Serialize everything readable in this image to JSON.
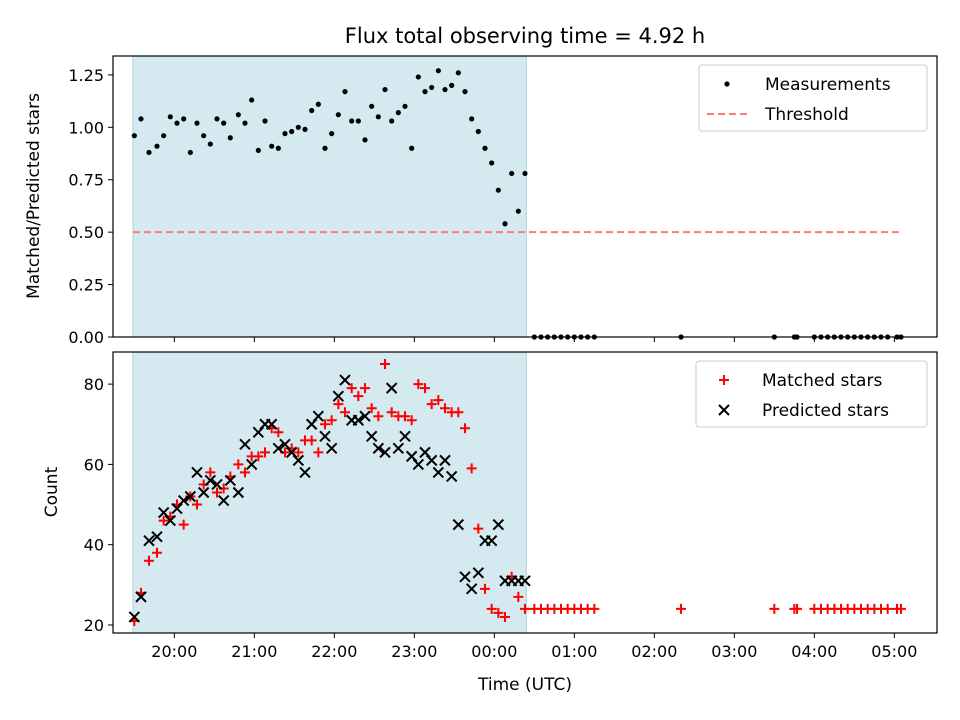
{
  "chart_data": [
    {
      "type": "scatter",
      "title": "Flux total observing time = 4.92 h",
      "xlabel": "",
      "ylabel": "Matched/Predicted stars",
      "xlim": [
        "19:14",
        "05:32"
      ],
      "ylim": [
        0,
        1.34
      ],
      "yticks": [
        "0.00",
        "0.25",
        "0.50",
        "0.75",
        "1.00",
        "1.25"
      ],
      "legend": {
        "position": "upper right",
        "entries": [
          "Measurements",
          "Threshold"
        ]
      },
      "shaded_region": {
        "x": [
          "19:29",
          "00:24"
        ],
        "color": "#d4eaf0"
      },
      "threshold": {
        "value": 0.5,
        "x": [
          "19:29",
          "05:05"
        ],
        "color": "#ff7a7a"
      },
      "series": [
        {
          "name": "Measurements",
          "color": "#000000",
          "x": [
            "19:30",
            "19:35",
            "19:41",
            "19:47",
            "19:52",
            "19:57",
            "20:02",
            "20:07",
            "20:12",
            "20:17",
            "20:22",
            "20:27",
            "20:32",
            "20:37",
            "20:42",
            "20:48",
            "20:53",
            "20:58",
            "21:03",
            "21:08",
            "21:13",
            "21:18",
            "21:23",
            "21:28",
            "21:33",
            "21:38",
            "21:43",
            "21:48",
            "21:53",
            "21:58",
            "22:03",
            "22:08",
            "22:13",
            "22:18",
            "22:23",
            "22:28",
            "22:33",
            "22:38",
            "22:43",
            "22:48",
            "22:53",
            "22:58",
            "23:03",
            "23:08",
            "23:13",
            "23:18",
            "23:23",
            "23:28",
            "23:33",
            "23:38",
            "23:43",
            "23:48",
            "23:53",
            "23:58",
            "00:03",
            "00:08",
            "00:13",
            "00:18",
            "00:23",
            "00:30",
            "00:35",
            "00:40",
            "00:45",
            "00:50",
            "00:55",
            "01:00",
            "01:05",
            "01:10",
            "01:15",
            "02:20",
            "03:30",
            "03:45",
            "03:47",
            "04:00",
            "04:05",
            "04:10",
            "04:15",
            "04:20",
            "04:25",
            "04:30",
            "04:35",
            "04:40",
            "04:45",
            "04:50",
            "04:55",
            "05:02",
            "05:05"
          ],
          "y": [
            0.96,
            1.04,
            0.88,
            0.91,
            0.96,
            1.05,
            1.02,
            1.04,
            0.88,
            1.02,
            0.96,
            0.92,
            1.04,
            1.02,
            0.95,
            1.06,
            1.02,
            1.13,
            0.89,
            1.03,
            0.91,
            0.9,
            0.97,
            0.98,
            1.0,
            0.99,
            1.08,
            1.11,
            0.9,
            0.97,
            1.06,
            1.17,
            1.03,
            1.03,
            0.94,
            1.1,
            1.05,
            1.18,
            1.03,
            1.07,
            1.1,
            0.9,
            1.24,
            1.17,
            1.19,
            1.27,
            1.18,
            1.2,
            1.26,
            1.17,
            1.04,
            0.98,
            0.9,
            0.83,
            0.7,
            0.54,
            0.78,
            0.6,
            0.78,
            0,
            0,
            0,
            0,
            0,
            0,
            0,
            0,
            0,
            0,
            0,
            0,
            0,
            0,
            0,
            0,
            0,
            0,
            0,
            0,
            0,
            0,
            0,
            0,
            0,
            0,
            0,
            0
          ]
        }
      ]
    },
    {
      "type": "scatter",
      "title": "",
      "xlabel": "Time (UTC)",
      "ylabel": "Count",
      "xlim": [
        "19:14",
        "05:32"
      ],
      "ylim": [
        18,
        88
      ],
      "xticks": [
        "20:00",
        "21:00",
        "22:00",
        "23:00",
        "00:00",
        "01:00",
        "02:00",
        "03:00",
        "04:00",
        "05:00"
      ],
      "yticks": [
        "20",
        "40",
        "60",
        "80"
      ],
      "legend": {
        "position": "upper right",
        "entries": [
          "Matched stars",
          "Predicted stars"
        ]
      },
      "shaded_region": {
        "x": [
          "19:29",
          "00:24"
        ],
        "color": "#d4eaf0"
      },
      "series": [
        {
          "name": "Matched stars",
          "marker": "+",
          "color": "#ff0000",
          "x": [
            "19:30",
            "19:35",
            "19:41",
            "19:47",
            "19:52",
            "19:57",
            "20:02",
            "20:07",
            "20:12",
            "20:17",
            "20:22",
            "20:27",
            "20:32",
            "20:37",
            "20:42",
            "20:48",
            "20:53",
            "20:58",
            "21:03",
            "21:08",
            "21:13",
            "21:18",
            "21:23",
            "21:28",
            "21:33",
            "21:38",
            "21:43",
            "21:48",
            "21:53",
            "21:58",
            "22:03",
            "22:08",
            "22:13",
            "22:18",
            "22:23",
            "22:28",
            "22:33",
            "22:38",
            "22:43",
            "22:48",
            "22:53",
            "22:58",
            "23:03",
            "23:08",
            "23:13",
            "23:18",
            "23:23",
            "23:28",
            "23:33",
            "23:38",
            "23:43",
            "23:48",
            "23:53",
            "23:58",
            "00:03",
            "00:08",
            "00:13",
            "00:18",
            "00:23",
            "00:30",
            "00:35",
            "00:40",
            "00:45",
            "00:50",
            "00:55",
            "01:00",
            "01:05",
            "01:10",
            "01:15",
            "02:20",
            "03:30",
            "03:45",
            "03:47",
            "04:00",
            "04:05",
            "04:10",
            "04:15",
            "04:20",
            "04:25",
            "04:30",
            "04:35",
            "04:40",
            "04:45",
            "04:50",
            "04:55",
            "05:02",
            "05:05"
          ],
          "y": [
            21,
            28,
            36,
            38,
            46,
            47,
            50,
            45,
            52,
            50,
            55,
            58,
            53,
            54,
            57,
            60,
            58,
            62,
            62,
            63,
            69,
            68,
            63,
            64,
            63,
            66,
            66,
            63,
            70,
            71,
            75,
            73,
            79,
            77,
            79,
            74,
            72,
            85,
            73,
            72,
            72,
            71,
            80,
            79,
            75,
            76,
            74,
            73,
            73,
            69,
            59,
            44,
            29,
            24,
            23,
            22,
            32,
            27,
            24,
            24,
            24,
            24,
            24,
            24,
            24,
            24,
            24,
            24,
            24,
            24,
            24,
            24,
            24,
            24,
            24,
            24,
            24,
            24,
            24,
            24,
            24,
            24,
            24,
            24,
            24,
            24,
            24
          ]
        },
        {
          "name": "Predicted stars",
          "marker": "x",
          "color": "#000000",
          "x": [
            "19:30",
            "19:35",
            "19:41",
            "19:47",
            "19:52",
            "19:57",
            "20:02",
            "20:07",
            "20:12",
            "20:17",
            "20:22",
            "20:27",
            "20:32",
            "20:37",
            "20:42",
            "20:48",
            "20:53",
            "20:58",
            "21:03",
            "21:08",
            "21:13",
            "21:18",
            "21:23",
            "21:28",
            "21:33",
            "21:38",
            "21:43",
            "21:48",
            "21:53",
            "21:58",
            "22:03",
            "22:08",
            "22:13",
            "22:18",
            "22:23",
            "22:28",
            "22:33",
            "22:38",
            "22:43",
            "22:48",
            "22:53",
            "22:58",
            "23:03",
            "23:08",
            "23:13",
            "23:18",
            "23:23",
            "23:28",
            "23:33",
            "23:38",
            "23:43",
            "23:48",
            "23:53",
            "23:58",
            "00:03",
            "00:08",
            "00:13",
            "00:18",
            "00:23"
          ],
          "y": [
            22,
            27,
            41,
            42,
            48,
            46,
            49,
            51,
            52,
            58,
            53,
            56,
            55,
            51,
            56,
            53,
            65,
            60,
            68,
            70,
            70,
            64,
            65,
            63,
            61,
            58,
            70,
            72,
            67,
            64,
            77,
            81,
            71,
            71,
            72,
            67,
            64,
            63,
            79,
            64,
            67,
            62,
            60,
            63,
            61,
            58,
            61,
            57,
            45,
            32,
            29,
            33,
            41,
            41,
            45,
            31,
            31,
            31,
            31
          ]
        }
      ]
    }
  ]
}
